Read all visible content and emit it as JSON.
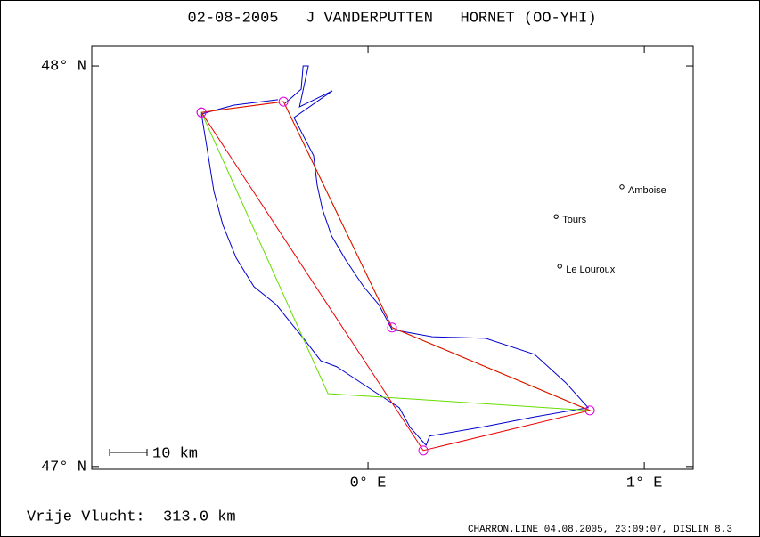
{
  "chart_data": {
    "type": "line",
    "title": "02-08-2005   J VANDERPUTTEN   HORNET (OO-YHI)",
    "xlim": [
      -1.0,
      1.177
    ],
    "ylim": [
      46.993,
      48.049
    ],
    "xticks": [
      {
        "value": 0,
        "label": "0° E"
      },
      {
        "value": 1,
        "label": "1° E"
      }
    ],
    "yticks": [
      {
        "value": 47,
        "label": "47° N"
      },
      {
        "value": 48,
        "label": "48° N"
      }
    ],
    "series": [
      {
        "color": "#0000cc",
        "marker": "none",
        "x": [
          -0.3,
          -0.242,
          -0.235,
          -0.216,
          -0.248,
          -0.129,
          -0.268,
          -0.197,
          -0.184,
          -0.165,
          -0.132,
          -0.081,
          -0.016,
          0.039,
          0.087,
          0.232,
          0.426,
          0.603,
          0.716,
          0.797,
          0.603,
          0.41,
          0.223,
          0.21,
          0.152,
          0.113,
          0.023,
          -0.113,
          -0.171,
          -0.229,
          -0.281,
          -0.332,
          -0.413,
          -0.477,
          -0.526,
          -0.558,
          -0.581,
          -0.603,
          -0.487,
          -0.326
        ],
        "values": [
          47.907,
          47.942,
          48.0,
          48.0,
          47.898,
          47.938,
          47.871,
          47.776,
          47.702,
          47.642,
          47.576,
          47.516,
          47.449,
          47.404,
          47.342,
          47.324,
          47.32,
          47.28,
          47.209,
          47.147,
          47.124,
          47.098,
          47.076,
          47.053,
          47.098,
          47.147,
          47.187,
          47.249,
          47.264,
          47.316,
          47.36,
          47.404,
          47.449,
          47.52,
          47.604,
          47.687,
          47.787,
          47.88,
          47.902,
          47.916
        ]
      },
      {
        "color": "#66dd00",
        "marker": "none",
        "x": [
          -0.306,
          -0.603,
          -0.145,
          0.803,
          0.087,
          -0.306
        ],
        "values": [
          47.911,
          47.884,
          47.182,
          47.14,
          47.347,
          47.911
        ]
      },
      {
        "color": "#ee0000",
        "marker": "circle",
        "marker_color": "#dd00dd",
        "x": [
          -0.603,
          -0.306,
          0.087,
          0.803,
          0.2,
          -0.603
        ],
        "values": [
          47.884,
          47.911,
          47.347,
          47.14,
          47.04,
          47.884
        ]
      }
    ],
    "places": [
      {
        "name": "Amboise",
        "x": 0.919,
        "y": 47.698
      },
      {
        "name": "Tours",
        "x": 0.681,
        "y": 47.624
      },
      {
        "name": "Le Louroux",
        "x": 0.694,
        "y": 47.5
      }
    ],
    "scale_label": "10 km",
    "summary": "Vrije Vlucht:  313.0 km",
    "footer": "CHARRON.LINE 04.08.2005, 23:09:07, DISLIN 8.3"
  }
}
